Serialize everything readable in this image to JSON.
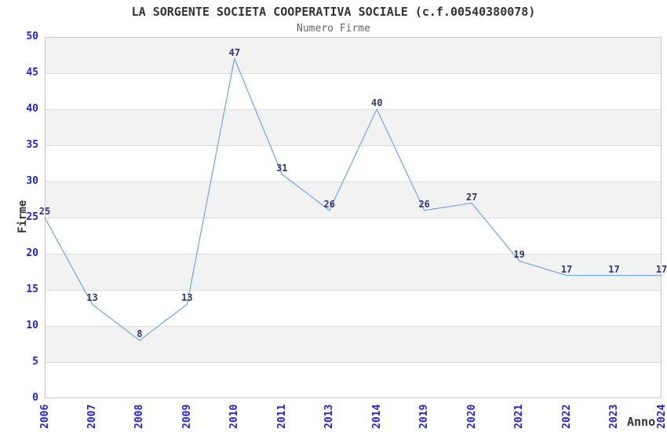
{
  "chart_data": {
    "type": "line",
    "title": "LA SORGENTE SOCIETA COOPERATIVA SOCIALE (c.f.00540380078)",
    "subtitle": "Numero Firme",
    "xlabel": "Anno",
    "ylabel": "Firme",
    "categories": [
      "2006",
      "2007",
      "2008",
      "2009",
      "2010",
      "2011",
      "2013",
      "2014",
      "2019",
      "2020",
      "2021",
      "2022",
      "2023",
      "2024"
    ],
    "values": [
      25,
      13,
      8,
      13,
      47,
      31,
      26,
      40,
      26,
      27,
      19,
      17,
      17,
      17
    ],
    "ylim": [
      0,
      50
    ],
    "ytick_step": 5,
    "yticks": [
      0,
      5,
      10,
      15,
      20,
      25,
      30,
      35,
      40,
      45,
      50
    ],
    "grid": true,
    "legend": "none",
    "background_style": "alternating horizontal bands",
    "data_labels_shown": true,
    "colors": {
      "line": "#7aaae8",
      "data_label": "#333377",
      "tick_label": "#2424cc",
      "title": "#333333",
      "subtitle": "#666666",
      "axis_title": "#333333",
      "band": "#f2f2f2",
      "gridline": "#dcdcdc",
      "border": "#c8c8c8",
      "background": "#ffffff"
    }
  }
}
